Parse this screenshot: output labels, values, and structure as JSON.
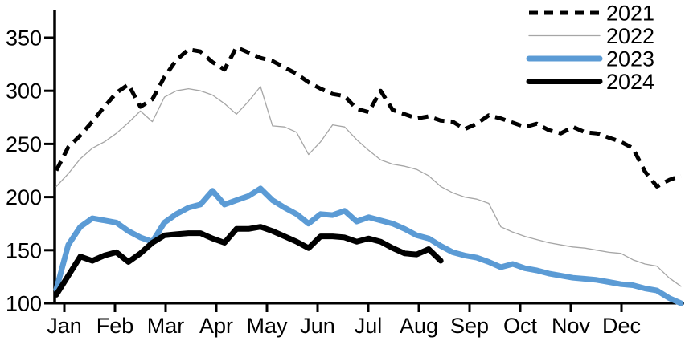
{
  "chart_data": {
    "type": "line",
    "title": "",
    "x_axis": {
      "tick_labels": [
        "Jan",
        "Feb",
        "Mar",
        "Apr",
        "May",
        "Jun",
        "Jul",
        "Aug",
        "Sep",
        "Oct",
        "Nov",
        "Dec"
      ],
      "resolution": "weekly"
    },
    "y_axis": {
      "ticks": [
        100,
        150,
        200,
        250,
        300,
        350
      ],
      "min": 100,
      "max": 350,
      "grid": false
    },
    "legend": {
      "position": "top-right",
      "entries": [
        "2021",
        "2022",
        "2023",
        "2024"
      ]
    },
    "colors": {
      "series_2021": "#000000",
      "series_2022": "#a6a6a6",
      "series_2023": "#5b9bd5",
      "series_2024": "#000000",
      "axis": "#000000",
      "background": "#ffffff"
    },
    "series": [
      {
        "name": "2021",
        "style": "dashed",
        "color": "#000000",
        "stroke_width": 5,
        "values": [
          225,
          247,
          258,
          271,
          285,
          298,
          306,
          285,
          292,
          313,
          329,
          339,
          337,
          327,
          320,
          341,
          336,
          331,
          328,
          322,
          316,
          308,
          302,
          297,
          295,
          283,
          280,
          300,
          282,
          278,
          274,
          276,
          272,
          271,
          264,
          269,
          277,
          274,
          270,
          266,
          269,
          263,
          260,
          266,
          261,
          260,
          256,
          252,
          246,
          224,
          210,
          216,
          220
        ]
      },
      {
        "name": "2022",
        "style": "solid",
        "color": "#a6a6a6",
        "stroke_width": 1.3,
        "values": [
          210,
          222,
          236,
          246,
          252,
          260,
          270,
          281,
          271,
          294,
          300,
          302,
          300,
          296,
          288,
          278,
          290,
          304,
          267,
          266,
          261,
          240,
          252,
          268,
          266,
          254,
          244,
          235,
          231,
          229,
          226,
          220,
          210,
          204,
          200,
          198,
          194,
          172,
          167,
          163,
          160,
          157,
          155,
          153,
          152,
          150,
          148,
          147,
          141,
          137,
          135,
          124,
          116
        ]
      },
      {
        "name": "2023",
        "style": "solid",
        "color": "#5b9bd5",
        "stroke_width": 7,
        "values": [
          113,
          155,
          172,
          180,
          178,
          176,
          168,
          162,
          158,
          176,
          184,
          190,
          193,
          206,
          193,
          197,
          201,
          208,
          197,
          190,
          184,
          175,
          184,
          183,
          187,
          177,
          181,
          178,
          175,
          170,
          164,
          161,
          154,
          148,
          145,
          143,
          139,
          134,
          137,
          133,
          131,
          128,
          126,
          124,
          123,
          122,
          120,
          118,
          117,
          114,
          112,
          105,
          100
        ]
      },
      {
        "name": "2024",
        "style": "solid",
        "color": "#000000",
        "stroke_width": 7,
        "values": [
          108,
          126,
          144,
          140,
          145,
          148,
          139,
          147,
          157,
          164,
          165,
          166,
          166,
          161,
          157,
          170,
          170,
          172,
          168,
          163,
          158,
          152,
          163,
          163,
          162,
          158,
          161,
          158,
          152,
          147,
          146,
          151,
          140
        ]
      }
    ]
  }
}
